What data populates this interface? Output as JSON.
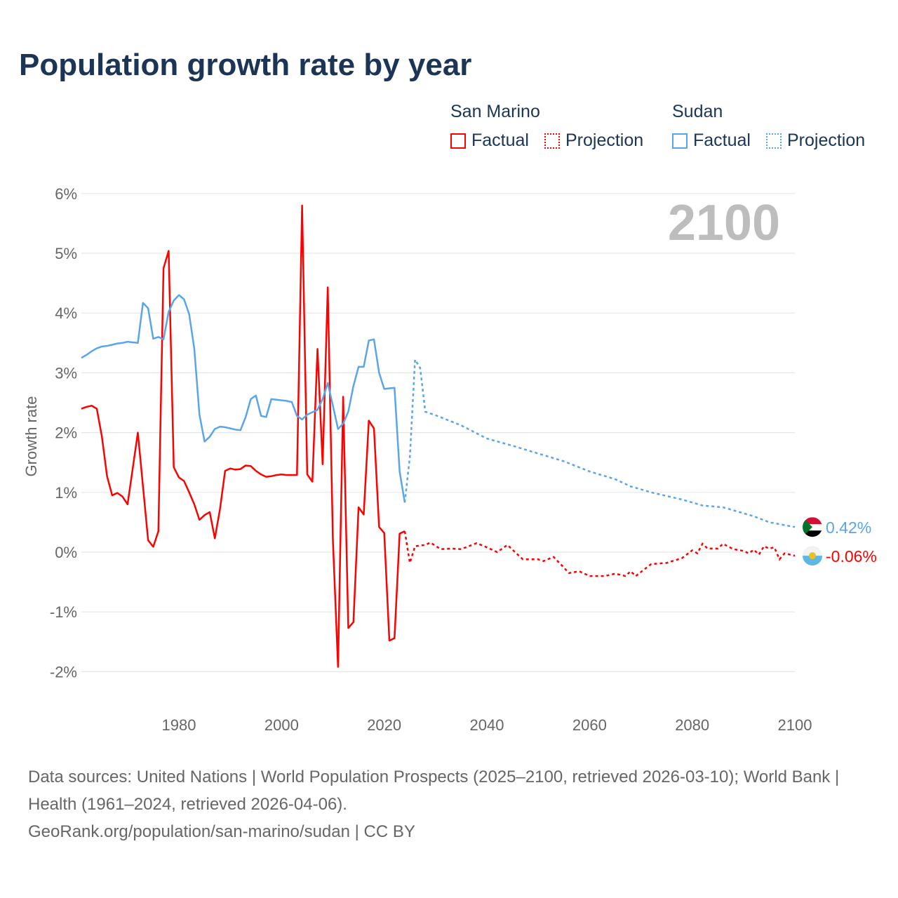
{
  "title": "Population growth rate by year",
  "legend": {
    "groups": [
      {
        "name": "San Marino",
        "color": "#ff0000",
        "factual": "Factual",
        "projection": "Projection"
      },
      {
        "name": "Sudan",
        "color": "#5aa5ea",
        "factual": "Factual",
        "projection": "Projection"
      }
    ]
  },
  "chart_data": {
    "type": "line",
    "title": "Population growth rate by year",
    "ylabel": "Growth rate",
    "xlabel": "",
    "xlim": [
      1961,
      2100
    ],
    "ylim": [
      -2.5,
      6
    ],
    "grid": true,
    "year_watermark": "2100",
    "x_ticks": [
      1980,
      2000,
      2020,
      2040,
      2060,
      2080,
      2100
    ],
    "y_ticks": [
      {
        "v": 6,
        "label": "6%"
      },
      {
        "v": 5,
        "label": "5%"
      },
      {
        "v": 4,
        "label": "4%"
      },
      {
        "v": 3,
        "label": "3%"
      },
      {
        "v": 2,
        "label": "2%"
      },
      {
        "v": 1,
        "label": "1%"
      },
      {
        "v": 0,
        "label": "0%"
      },
      {
        "v": -1,
        "label": "-1%"
      },
      {
        "v": -2,
        "label": "-2%"
      }
    ],
    "series": [
      {
        "name": "San Marino",
        "color": "#ff0000",
        "end_label": "-0.06%",
        "factual_start": 1961,
        "factual": [
          2.4,
          2.43,
          2.45,
          2.4,
          1.93,
          1.27,
          0.95,
          0.99,
          0.93,
          0.8,
          1.4,
          2.0,
          1.1,
          0.2,
          0.09,
          0.35,
          4.75,
          5.04,
          1.42,
          1.25,
          1.19,
          1.0,
          0.8,
          0.54,
          0.62,
          0.67,
          0.23,
          0.72,
          1.36,
          1.4,
          1.38,
          1.39,
          1.45,
          1.44,
          1.36,
          1.3,
          1.26,
          1.27,
          1.29,
          1.3,
          1.29,
          1.29,
          1.29,
          5.8,
          1.3,
          1.18,
          3.4,
          1.47,
          4.43,
          0.2,
          -1.92,
          2.6,
          -1.27,
          -1.17,
          0.75,
          0.63,
          2.2,
          2.07,
          0.42,
          0.32,
          -1.48,
          -1.44,
          0.31,
          0.35
        ],
        "projection": [
          [
            2024,
            0.35
          ],
          [
            2025,
            -0.18
          ],
          [
            2026,
            0.1
          ],
          [
            2028,
            0.12
          ],
          [
            2029,
            0.16
          ],
          [
            2031,
            0.05
          ],
          [
            2033,
            0.06
          ],
          [
            2035,
            0.05
          ],
          [
            2038,
            0.15
          ],
          [
            2040,
            0.08
          ],
          [
            2042,
            0.0
          ],
          [
            2044,
            0.12
          ],
          [
            2047,
            -0.12
          ],
          [
            2050,
            -0.12
          ],
          [
            2051,
            -0.15
          ],
          [
            2053,
            -0.08
          ],
          [
            2056,
            -0.35
          ],
          [
            2058,
            -0.32
          ],
          [
            2060,
            -0.4
          ],
          [
            2063,
            -0.4
          ],
          [
            2065,
            -0.36
          ],
          [
            2067,
            -0.4
          ],
          [
            2068,
            -0.32
          ],
          [
            2069,
            -0.4
          ],
          [
            2072,
            -0.2
          ],
          [
            2075,
            -0.18
          ],
          [
            2078,
            -0.1
          ],
          [
            2080,
            0.03
          ],
          [
            2081,
            -0.02
          ],
          [
            2082,
            0.14
          ],
          [
            2083,
            0.06
          ],
          [
            2085,
            0.06
          ],
          [
            2086,
            0.14
          ],
          [
            2088,
            0.05
          ],
          [
            2090,
            0.02
          ],
          [
            2091,
            -0.02
          ],
          [
            2092,
            0.04
          ],
          [
            2093,
            -0.04
          ],
          [
            2094,
            0.1
          ],
          [
            2095,
            0.06
          ],
          [
            2096,
            0.08
          ],
          [
            2097,
            -0.12
          ],
          [
            2098,
            -0.02
          ],
          [
            2100,
            -0.06
          ]
        ]
      },
      {
        "name": "Sudan",
        "color": "#5aa5ea",
        "end_label": "0.42%",
        "factual_start": 1961,
        "factual": [
          3.25,
          3.3,
          3.36,
          3.41,
          3.44,
          3.45,
          3.47,
          3.49,
          3.5,
          3.52,
          3.51,
          3.5,
          4.17,
          4.08,
          3.57,
          3.6,
          3.56,
          4.02,
          4.21,
          4.3,
          4.23,
          3.98,
          3.4,
          2.3,
          1.85,
          1.93,
          2.06,
          2.1,
          2.09,
          2.07,
          2.05,
          2.04,
          2.26,
          2.56,
          2.62,
          2.28,
          2.26,
          2.56,
          2.55,
          2.54,
          2.53,
          2.51,
          2.28,
          2.22,
          2.3,
          2.34,
          2.38,
          2.56,
          2.83,
          2.45,
          2.06,
          2.15,
          2.35,
          2.78,
          3.1,
          3.1,
          3.54,
          3.56,
          3.0,
          2.73,
          2.74,
          2.75,
          1.35,
          0.83
        ],
        "projection": [
          [
            2024,
            0.83
          ],
          [
            2025,
            1.6
          ],
          [
            2026,
            3.22
          ],
          [
            2027,
            3.08
          ],
          [
            2028,
            2.35
          ],
          [
            2030,
            2.29
          ],
          [
            2035,
            2.12
          ],
          [
            2040,
            1.9
          ],
          [
            2045,
            1.78
          ],
          [
            2050,
            1.65
          ],
          [
            2055,
            1.52
          ],
          [
            2060,
            1.35
          ],
          [
            2065,
            1.22
          ],
          [
            2068,
            1.1
          ],
          [
            2072,
            1.0
          ],
          [
            2078,
            0.88
          ],
          [
            2082,
            0.78
          ],
          [
            2086,
            0.75
          ],
          [
            2092,
            0.6
          ],
          [
            2095,
            0.5
          ],
          [
            2100,
            0.42
          ]
        ]
      }
    ]
  },
  "footer": {
    "sources": "Data sources: United Nations | World Population Prospects (2025–2100, retrieved 2026-03-10); World Bank | Health (1961–2024, retrieved 2026-04-06).",
    "credit": "GeoRank.org/population/san-marino/sudan | CC BY"
  }
}
